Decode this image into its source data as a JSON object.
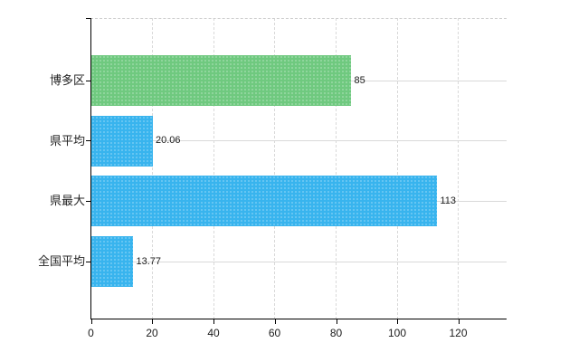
{
  "chart_data": {
    "type": "bar",
    "orientation": "horizontal",
    "title": "",
    "xlabel": "",
    "ylabel": "",
    "categories": [
      "博多区",
      "県平均",
      "県最大",
      "全国平均"
    ],
    "values": [
      85,
      20.06,
      113,
      13.77
    ],
    "value_labels": [
      "85",
      "20.06",
      "113",
      "13.77"
    ],
    "bar_colors": [
      "#6fc97f",
      "#38b4ee",
      "#38b4ee",
      "#38b4ee"
    ],
    "x_ticks": [
      0,
      20,
      40,
      60,
      80,
      100,
      120
    ],
    "xlim": [
      0,
      136
    ],
    "grid": true,
    "legend": false
  },
  "colors": {
    "background": "#ffffff",
    "axis": "#000000",
    "gridline": "#d9d9d9",
    "border_dashed": "#cccccc",
    "category_text": "#262626",
    "value_text": "#1c1c1c",
    "tick_text": "#1c1c1c"
  }
}
